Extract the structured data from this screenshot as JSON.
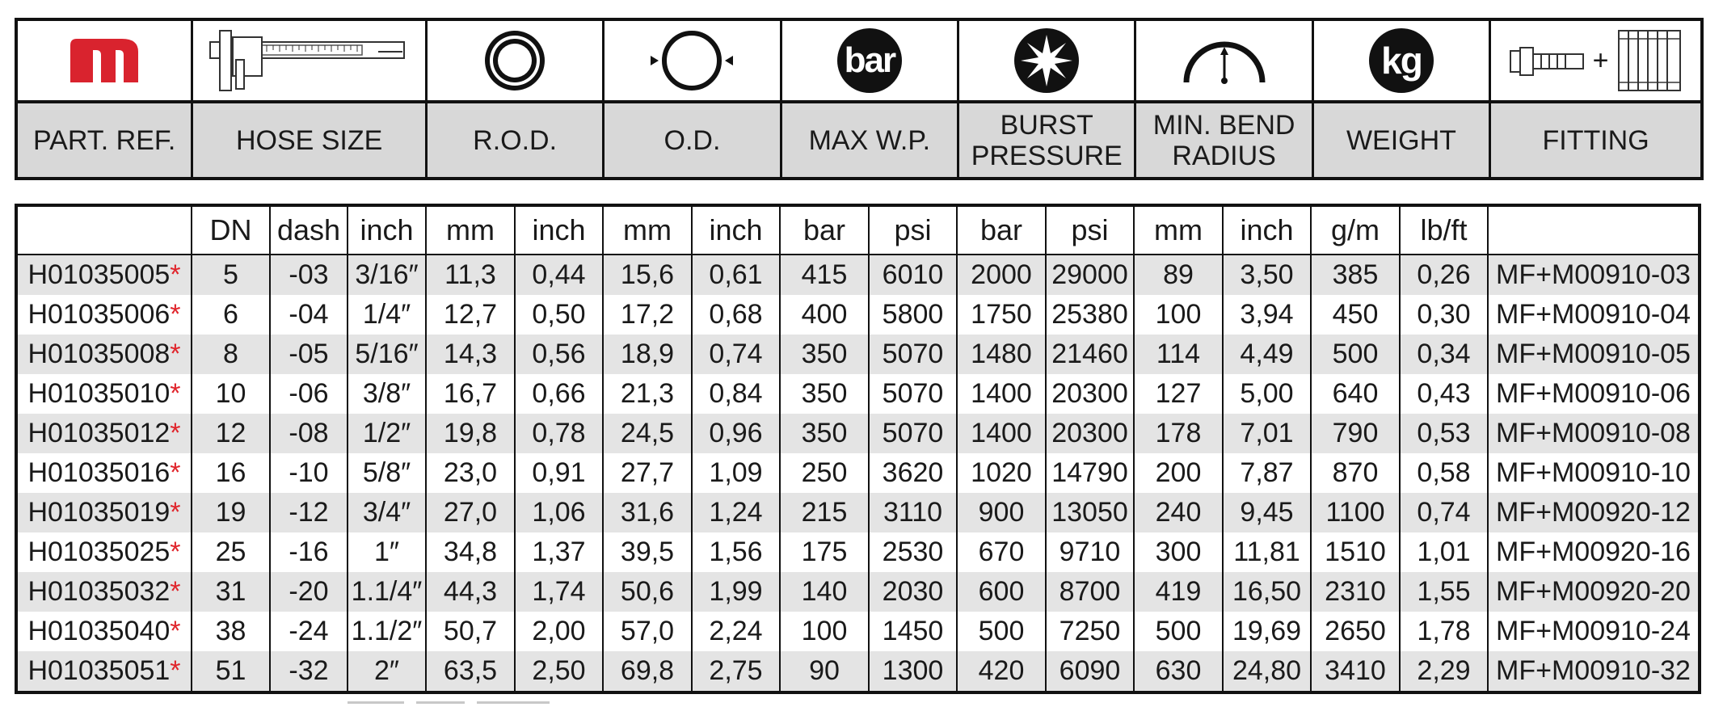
{
  "header": {
    "columns": [
      {
        "icon": "brand-logo-icon",
        "label": "PART. REF."
      },
      {
        "icon": "caliper-icon",
        "label": "HOSE SIZE"
      },
      {
        "icon": "reinforcement-rings-icon",
        "label": "R.O.D."
      },
      {
        "icon": "outer-diameter-icon",
        "label": "O.D."
      },
      {
        "icon": "bar-pressure-icon",
        "icon_text": "bar",
        "label": "MAX W.P."
      },
      {
        "icon": "burst-star-icon",
        "label": "BURST\nPRESSURE"
      },
      {
        "icon": "bend-radius-icon",
        "label": "MIN. BEND\nRADIUS"
      },
      {
        "icon": "weight-kg-icon",
        "icon_text": "kg",
        "label": "WEIGHT"
      },
      {
        "icon": "fitting-icon",
        "icon_text": "+",
        "label": "FITTING"
      }
    ]
  },
  "table": {
    "units": [
      "",
      "DN",
      "dash",
      "inch",
      "mm",
      "inch",
      "mm",
      "inch",
      "bar",
      "psi",
      "bar",
      "psi",
      "mm",
      "inch",
      "g/m",
      "lb/ft",
      ""
    ],
    "asterisk": "*",
    "rows": [
      [
        "H01035005",
        "5",
        "-03",
        "3/16″",
        "11,3",
        "0,44",
        "15,6",
        "0,61",
        "415",
        "6010",
        "2000",
        "29000",
        "89",
        "3,50",
        "385",
        "0,26",
        "MF+M00910-03"
      ],
      [
        "H01035006",
        "6",
        "-04",
        "1/4″",
        "12,7",
        "0,50",
        "17,2",
        "0,68",
        "400",
        "5800",
        "1750",
        "25380",
        "100",
        "3,94",
        "450",
        "0,30",
        "MF+M00910-04"
      ],
      [
        "H01035008",
        "8",
        "-05",
        "5/16″",
        "14,3",
        "0,56",
        "18,9",
        "0,74",
        "350",
        "5070",
        "1480",
        "21460",
        "114",
        "4,49",
        "500",
        "0,34",
        "MF+M00910-05"
      ],
      [
        "H01035010",
        "10",
        "-06",
        "3/8″",
        "16,7",
        "0,66",
        "21,3",
        "0,84",
        "350",
        "5070",
        "1400",
        "20300",
        "127",
        "5,00",
        "640",
        "0,43",
        "MF+M00910-06"
      ],
      [
        "H01035012",
        "12",
        "-08",
        "1/2″",
        "19,8",
        "0,78",
        "24,5",
        "0,96",
        "350",
        "5070",
        "1400",
        "20300",
        "178",
        "7,01",
        "790",
        "0,53",
        "MF+M00910-08"
      ],
      [
        "H01035016",
        "16",
        "-10",
        "5/8″",
        "23,0",
        "0,91",
        "27,7",
        "1,09",
        "250",
        "3620",
        "1020",
        "14790",
        "200",
        "7,87",
        "870",
        "0,58",
        "MF+M00910-10"
      ],
      [
        "H01035019",
        "19",
        "-12",
        "3/4″",
        "27,0",
        "1,06",
        "31,6",
        "1,24",
        "215",
        "3110",
        "900",
        "13050",
        "240",
        "9,45",
        "1100",
        "0,74",
        "MF+M00920-12"
      ],
      [
        "H01035025",
        "25",
        "-16",
        "1″",
        "34,8",
        "1,37",
        "39,5",
        "1,56",
        "175",
        "2530",
        "670",
        "9710",
        "300",
        "11,81",
        "1510",
        "1,01",
        "MF+M00920-16"
      ],
      [
        "H01035032",
        "31",
        "-20",
        "1.1/4″",
        "44,3",
        "1,74",
        "50,6",
        "1,99",
        "140",
        "2030",
        "600",
        "8700",
        "419",
        "16,50",
        "2310",
        "1,55",
        "MF+M00920-20"
      ],
      [
        "H01035040",
        "38",
        "-24",
        "1.1/2″",
        "50,7",
        "2,00",
        "57,0",
        "2,24",
        "100",
        "1450",
        "500",
        "7250",
        "500",
        "19,69",
        "2650",
        "1,78",
        "MF+M00910-24"
      ],
      [
        "H01035051",
        "51",
        "-32",
        "2″",
        "63,5",
        "2,50",
        "69,8",
        "2,75",
        "90",
        "1300",
        "420",
        "6090",
        "630",
        "24,80",
        "3410",
        "2,29",
        "MF+M00910-32"
      ]
    ]
  },
  "colors": {
    "brand_red": "#d9232e",
    "asterisk_red": "#e0242b",
    "header_gray": "#d8d8d8",
    "stripe_gray": "#e4e4e4",
    "rule": "#111111"
  }
}
